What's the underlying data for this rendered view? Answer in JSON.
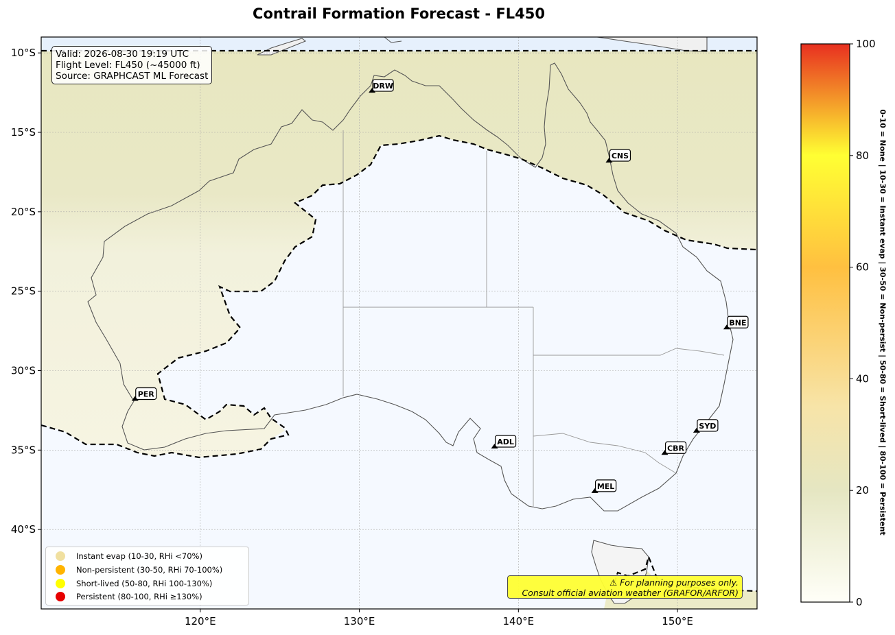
{
  "title": "Contrail Formation Forecast - FL450",
  "info": {
    "valid": "Valid: 2026-08-30 19:19 UTC",
    "flight_level": "Flight Level: FL450 (~45000 ft)",
    "source": "Source: GRAPHCAST ML Forecast"
  },
  "map": {
    "lon_range": [
      110,
      155
    ],
    "lat_range": [
      -45,
      -9
    ],
    "lon_ticks": [
      120,
      130,
      140,
      150
    ],
    "lat_ticks": [
      -10,
      -15,
      -20,
      -25,
      -30,
      -35,
      -40
    ],
    "lon_labels": [
      "120°E",
      "130°E",
      "140°E",
      "150°E"
    ],
    "lat_labels": [
      "10°S",
      "15°S",
      "20°S",
      "25°S",
      "30°S",
      "35°S",
      "40°S"
    ]
  },
  "airports": [
    {
      "code": "DRW",
      "lon": 130.8,
      "lat": -12.5
    },
    {
      "code": "CNS",
      "lon": 145.7,
      "lat": -16.9
    },
    {
      "code": "BNE",
      "lon": 153.1,
      "lat": -27.4
    },
    {
      "code": "PER",
      "lon": 115.9,
      "lat": -31.9
    },
    {
      "code": "SYD",
      "lon": 151.2,
      "lat": -33.9
    },
    {
      "code": "ADL",
      "lon": 138.5,
      "lat": -34.9
    },
    {
      "code": "CBR",
      "lon": 149.2,
      "lat": -35.3
    },
    {
      "code": "MEL",
      "lon": 144.8,
      "lat": -37.7
    }
  ],
  "legend": [
    {
      "label": "Instant evap (10-30, RHi <70%)",
      "color": "#f0e0a0"
    },
    {
      "label": "Non-persistent (30-50, RHi 70-100%)",
      "color": "#ffb400"
    },
    {
      "label": "Short-lived (50-80, RHi 100-130%)",
      "color": "#ffff00"
    },
    {
      "label": "Persistent (80-100, RHi ≥130%)",
      "color": "#e60000"
    }
  ],
  "warning": {
    "line1": "⚠ For planning purposes only.",
    "line2": "Consult official aviation weather (GRAFOR/ARFOR)"
  },
  "colorbar": {
    "min": 0,
    "max": 100,
    "ticks": [
      "0",
      "20",
      "40",
      "60",
      "80",
      "100"
    ],
    "label": "0-10 = None  |  10-30 = Instant evap  |  30-50 = Non-persist  |  50-80 = Short-lived  |  80-100 = Persistent",
    "stops": [
      "#fffff8",
      "#e5e6c2",
      "#f7e4a8",
      "#ffc040",
      "#ffff33",
      "#e83020"
    ]
  }
}
